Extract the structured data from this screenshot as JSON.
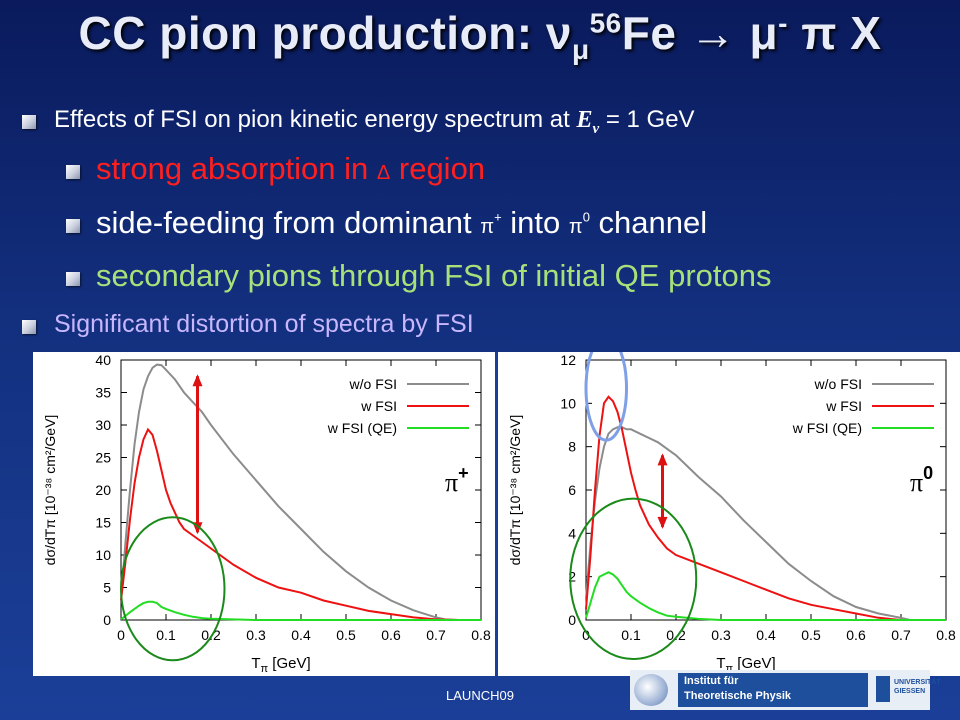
{
  "title": {
    "prefix": "CC pion production:  ",
    "nu": "ν",
    "nu_sub": "μ",
    "mass": "56",
    "element": "Fe ",
    "arrow": "→",
    "rest": " μ",
    "minus": "-",
    "tail": " π X"
  },
  "bullets": {
    "b1_text": "Effects of FSI on pion kinetic energy spectrum at ",
    "b1_E": "E",
    "b1_nu": "ν",
    "b1_tail": " = 1 GeV",
    "b2_text": "strong absorption in ",
    "b2_delta": "Δ",
    "b2_tail": " region",
    "b3_text": "side-feeding from dominant ",
    "b3_pip": "π",
    "b3_plus": "+",
    "b3_mid": " into ",
    "b3_pi0": "π",
    "b3_zero": "0",
    "b3_tail": " channel",
    "b4_text": "secondary pions through FSI of initial QE protons",
    "b5_text": "Significant distortion of spectra by FSI"
  },
  "footer": "LAUNCH09",
  "logo": {
    "line1": "Institut für",
    "line2": "Theoretische Physik",
    "uni": "UNIVERSITÄT GIESSEN"
  },
  "colors": {
    "wo_fsi": "#8c8c8c",
    "w_fsi": "#ee1111",
    "w_fsi_qe": "#22dd22",
    "annotation_red": "#dd1111",
    "circle_green": "#1a8a1a",
    "circle_blue": "#7f9fe6"
  },
  "chart_data": [
    {
      "type": "line",
      "panel_label": "π+",
      "xlabel": "T",
      "xlabel_sub": "π",
      "xlabel_unit": " [GeV]",
      "ylabel": "dσ/dTπ [10⁻³⁸ cm²/GeV]",
      "xlim": [
        0,
        0.8
      ],
      "ylim": [
        0,
        40
      ],
      "xticks": [
        0,
        0.1,
        0.2,
        0.3,
        0.4,
        0.5,
        0.6,
        0.7,
        0.8
      ],
      "xtick_labels": [
        "0",
        "0.1",
        "0.2",
        "0.3",
        "0.4",
        "0.5",
        "0.6",
        "0.7",
        "0.8"
      ],
      "yticks": [
        0,
        5,
        10,
        15,
        20,
        25,
        30,
        35,
        40
      ],
      "ytick_labels": [
        "0",
        "5",
        "10",
        "15",
        "20",
        "25",
        "30",
        "35",
        "40"
      ],
      "legend_position": "top-right",
      "series": [
        {
          "name": "w/o FSI",
          "x": [
            0,
            0.01,
            0.02,
            0.03,
            0.04,
            0.05,
            0.06,
            0.07,
            0.08,
            0.09,
            0.1,
            0.12,
            0.14,
            0.16,
            0.18,
            0.2,
            0.25,
            0.3,
            0.35,
            0.4,
            0.45,
            0.5,
            0.55,
            0.6,
            0.65,
            0.7,
            0.72,
            0.75,
            0.8
          ],
          "y": [
            3,
            12,
            20,
            27,
            32,
            35.5,
            37.5,
            38.8,
            39.3,
            39.2,
            38.5,
            37,
            35,
            33.5,
            32,
            30,
            25.5,
            21.5,
            17.5,
            14,
            10.5,
            7.5,
            5,
            3,
            1.5,
            0.4,
            0.1,
            0,
            0
          ]
        },
        {
          "name": "w FSI",
          "x": [
            0,
            0.01,
            0.02,
            0.03,
            0.04,
            0.05,
            0.06,
            0.07,
            0.08,
            0.09,
            0.1,
            0.11,
            0.12,
            0.13,
            0.14,
            0.16,
            0.18,
            0.2,
            0.25,
            0.3,
            0.35,
            0.4,
            0.45,
            0.5,
            0.55,
            0.6,
            0.65,
            0.7,
            0.75,
            0.8
          ],
          "y": [
            3,
            9,
            15.5,
            21,
            25,
            27.8,
            29.3,
            28.5,
            26,
            23,
            20,
            18,
            16.5,
            15,
            14,
            13,
            12,
            11,
            8.5,
            6.5,
            5,
            4.2,
            3,
            2.2,
            1.4,
            0.9,
            0.4,
            0.1,
            0,
            0
          ]
        },
        {
          "name": "w FSI (QE)",
          "x": [
            0,
            0.02,
            0.04,
            0.05,
            0.06,
            0.07,
            0.08,
            0.09,
            0.1,
            0.12,
            0.14,
            0.16,
            0.18,
            0.2,
            0.25,
            0.3,
            0.4,
            0.5,
            0.8
          ],
          "y": [
            0.1,
            1.2,
            2.2,
            2.6,
            2.8,
            2.8,
            2.6,
            2,
            1.7,
            1.2,
            0.8,
            0.5,
            0.3,
            0.2,
            0.1,
            0,
            0,
            0,
            0
          ]
        }
      ],
      "annotations": {
        "arrow": {
          "x": 0.17,
          "y_from": 13.5,
          "y_to": 37.5
        },
        "ellipse": {
          "cx": 0.115,
          "cy": 4.8,
          "rx": 0.115,
          "ry": 11
        }
      }
    },
    {
      "type": "line",
      "panel_label": "π0",
      "xlabel": "T",
      "xlabel_sub": "π",
      "xlabel_unit": " [GeV]",
      "ylabel": "dσ/dTπ [10⁻³⁸ cm²/GeV]",
      "xlim": [
        0,
        0.8
      ],
      "ylim": [
        0,
        12
      ],
      "xticks": [
        0,
        0.1,
        0.2,
        0.3,
        0.4,
        0.5,
        0.6,
        0.7,
        0.8
      ],
      "xtick_labels": [
        "0",
        "0.1",
        "0.2",
        "0.3",
        "0.4",
        "0.5",
        "0.6",
        "0.7",
        "0.8"
      ],
      "yticks": [
        0,
        2,
        4,
        6,
        8,
        10,
        12
      ],
      "ytick_labels": [
        "0",
        "2",
        "4",
        "6",
        "8",
        "10",
        "12"
      ],
      "legend_position": "top-right",
      "series": [
        {
          "name": "w/o FSI",
          "x": [
            0,
            0.01,
            0.02,
            0.03,
            0.04,
            0.05,
            0.06,
            0.07,
            0.08,
            0.09,
            0.1,
            0.12,
            0.14,
            0.16,
            0.18,
            0.2,
            0.25,
            0.3,
            0.35,
            0.4,
            0.45,
            0.5,
            0.55,
            0.6,
            0.65,
            0.7,
            0.72,
            0.8
          ],
          "y": [
            1,
            3.5,
            5.5,
            7,
            8,
            8.6,
            8.8,
            8.9,
            8.9,
            8.8,
            8.8,
            8.6,
            8.4,
            8.2,
            7.9,
            7.6,
            6.6,
            5.7,
            4.6,
            3.6,
            2.6,
            1.8,
            1.1,
            0.6,
            0.3,
            0.1,
            0,
            0
          ]
        },
        {
          "name": "w FSI",
          "x": [
            0,
            0.01,
            0.02,
            0.03,
            0.04,
            0.05,
            0.06,
            0.07,
            0.08,
            0.09,
            0.1,
            0.11,
            0.12,
            0.14,
            0.16,
            0.18,
            0.2,
            0.25,
            0.3,
            0.35,
            0.4,
            0.45,
            0.5,
            0.55,
            0.6,
            0.65,
            0.7,
            0.75,
            0.8
          ],
          "y": [
            0.5,
            3,
            6,
            8.5,
            10,
            10.3,
            10.1,
            9.6,
            8.8,
            7.8,
            6.8,
            6,
            5.3,
            4.4,
            3.8,
            3.3,
            3,
            2.6,
            2.2,
            1.8,
            1.4,
            1,
            0.7,
            0.5,
            0.3,
            0.1,
            0,
            0,
            0
          ]
        },
        {
          "name": "w FSI (QE)",
          "x": [
            0,
            0.01,
            0.02,
            0.03,
            0.04,
            0.05,
            0.06,
            0.07,
            0.08,
            0.09,
            0.1,
            0.12,
            0.14,
            0.16,
            0.18,
            0.2,
            0.25,
            0.3,
            0.4,
            0.5,
            0.8
          ],
          "y": [
            0.1,
            0.8,
            1.5,
            2,
            2.1,
            2.2,
            2.1,
            1.9,
            1.6,
            1.3,
            1.1,
            0.8,
            0.55,
            0.35,
            0.2,
            0.15,
            0.05,
            0,
            0,
            0,
            0
          ]
        }
      ],
      "annotations": {
        "arrow": {
          "x": 0.17,
          "y_from": 4.3,
          "y_to": 7.6
        },
        "ellipse_green": {
          "cx": 0.105,
          "cy": 1.9,
          "rx": 0.14,
          "ry": 3.7
        },
        "ellipse_blue": {
          "cx": 0.045,
          "cy": 10.7,
          "rx": 0.045,
          "ry": 2.4
        }
      }
    }
  ]
}
